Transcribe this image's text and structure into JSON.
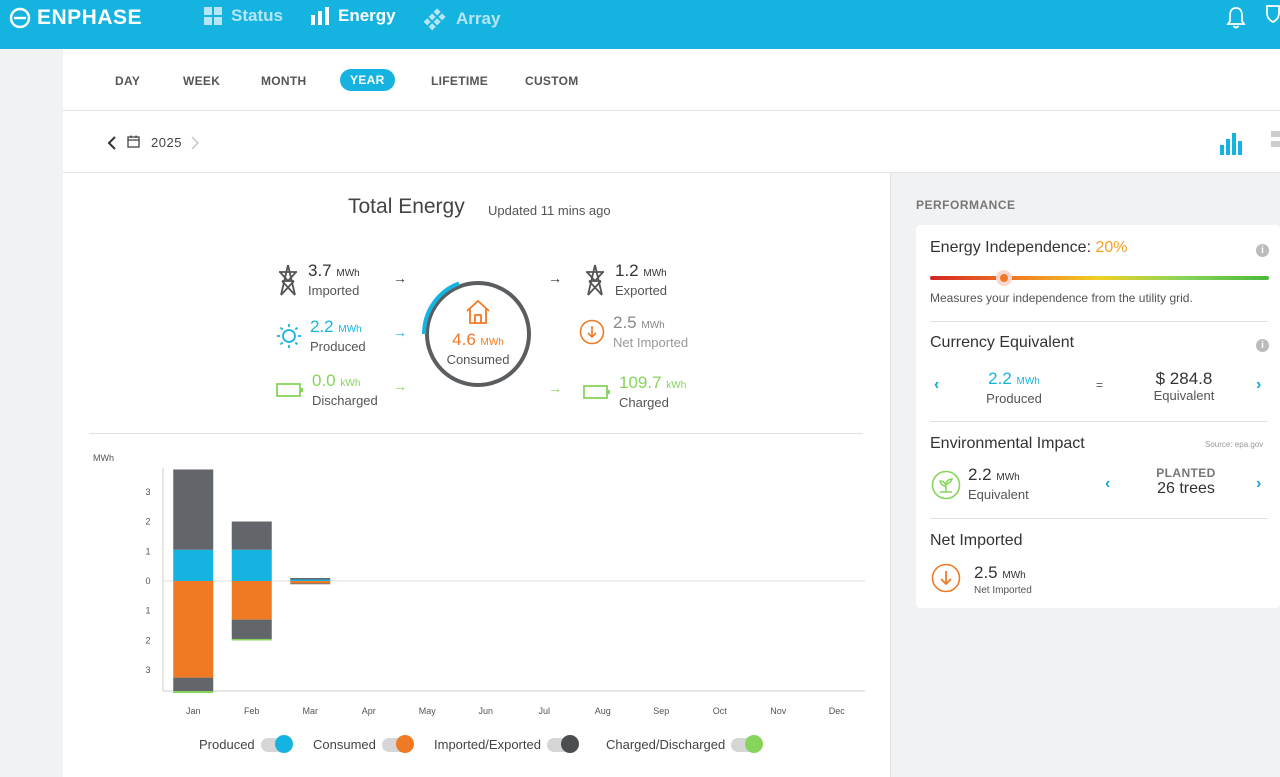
{
  "brand": {
    "name": "ENPHASE"
  },
  "nav": {
    "status": "Status",
    "energy": "Energy",
    "array": "Array"
  },
  "tabs": [
    "DAY",
    "WEEK",
    "MONTH",
    "YEAR",
    "LIFETIME",
    "CUSTOM"
  ],
  "date": {
    "year": "2025"
  },
  "summary": {
    "title": "Total Energy",
    "updated": "Updated 11 mins ago",
    "imported": {
      "value": "3.7",
      "unit": "MWh",
      "label": "Imported"
    },
    "produced": {
      "value": "2.2",
      "unit": "MWh",
      "label": "Produced"
    },
    "discharged": {
      "value": "0.0",
      "unit": "kWh",
      "label": "Discharged"
    },
    "consumed": {
      "value": "4.6",
      "unit": "MWh",
      "label": "Consumed"
    },
    "exported": {
      "value": "1.2",
      "unit": "MWh",
      "label": "Exported"
    },
    "net_imported": {
      "value": "2.5",
      "unit": "MWh",
      "label": "Net Imported"
    },
    "charged": {
      "value": "109.7",
      "unit": "kWh",
      "label": "Charged"
    }
  },
  "chart_data": {
    "type": "bar",
    "ylabel": "MWh",
    "categories": [
      "Jan",
      "Feb",
      "Mar",
      "Apr",
      "May",
      "Jun",
      "Jul",
      "Aug",
      "Sep",
      "Oct",
      "Nov",
      "Dec"
    ],
    "yticks": [
      "3",
      "2",
      "1",
      "0",
      "1",
      "2",
      "3"
    ],
    "ylim": [
      -3.7,
      3.8
    ],
    "series": [
      {
        "name": "Produced",
        "values": [
          1.05,
          1.05,
          0.05,
          0,
          0,
          0,
          0,
          0,
          0,
          0,
          0,
          0
        ],
        "color": "#15b4e0"
      },
      {
        "name": "Consumed",
        "values": [
          -3.25,
          -1.3,
          -0.08,
          0,
          0,
          0,
          0,
          0,
          0,
          0,
          0,
          0
        ],
        "color": "#f07a24"
      },
      {
        "name": "Imported/Exported",
        "export_values": [
          2.7,
          0.95,
          0.05,
          0,
          0,
          0,
          0,
          0,
          0,
          0,
          0,
          0
        ],
        "import_values": [
          -0.45,
          -0.65,
          -0.03,
          0,
          0,
          0,
          0,
          0,
          0,
          0,
          0,
          0
        ],
        "color": "#62666a"
      },
      {
        "name": "Charged/Discharged",
        "values": [
          -0.07,
          -0.05,
          0,
          0,
          0,
          0,
          0,
          0,
          0,
          0,
          0,
          0
        ],
        "color": "#86d45b"
      }
    ],
    "legend": [
      "Produced",
      "Consumed",
      "Imported/Exported",
      "Charged/Discharged"
    ],
    "legend_placement": "bottom"
  },
  "performance": {
    "title": "PERFORMANCE",
    "independence": {
      "label": "Energy Independence:",
      "value": "20%",
      "fraction": 0.2,
      "note": "Measures your independence from the utility grid."
    },
    "currency": {
      "title": "Currency Equivalent",
      "produced_value": "2.2",
      "produced_unit": "MWh",
      "produced_label": "Produced",
      "equals": "=",
      "amount": "$ 284.8",
      "amount_label": "Equivalent"
    },
    "environment": {
      "title": "Environmental Impact",
      "source": "Source: epa.gov",
      "value": "2.2",
      "unit": "MWh",
      "label": "Equivalent",
      "planted_label": "PLANTED",
      "planted_value": "26 trees"
    },
    "net_imported": {
      "title": "Net Imported",
      "value": "2.5",
      "unit": "MWh",
      "label": "Net Imported"
    }
  },
  "colors": {
    "accent": "#15b4e0",
    "orange": "#f07a24",
    "green": "#86d45b",
    "dark": "#5b5e61"
  }
}
